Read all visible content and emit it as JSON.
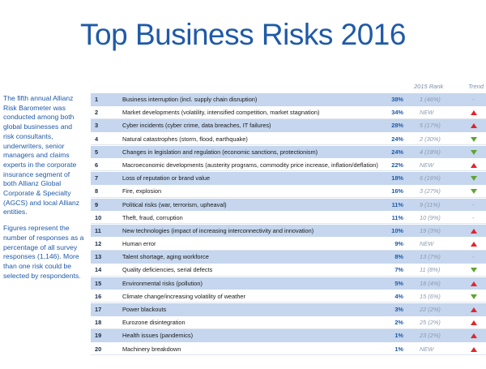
{
  "title": "Top Business Risks 2016",
  "intro": {
    "p1": "The fifth annual Allianz Risk Barometer was conducted among both global businesses and risk consultants, underwriters, senior managers and claims experts in the corporate insurance segment of both Allianz Global Corporate & Specialty (AGCS) and local Allianz entities.",
    "p2": "Figures represent the number of responses as a percentage of all survey responses (1,146). More than one risk could be selected by respondents."
  },
  "headers": {
    "rank_2015": "2015 Rank",
    "trend": "Trend"
  },
  "colors": {
    "title": "#1f5aa8",
    "shaded_row": "#c5d6ee",
    "up": "#e3242b",
    "down": "#5fa330"
  },
  "rows": [
    {
      "rank": "1",
      "risk": "Business interruption (incl. supply chain disruption)",
      "pct": "38%",
      "prev": "1 (46%)",
      "trend": "same"
    },
    {
      "rank": "2",
      "risk": "Market developments (volatility, intensified competition, market stagnation)",
      "pct": "34%",
      "prev": "NEW",
      "trend": "up"
    },
    {
      "rank": "3",
      "risk": "Cyber incidents (cyber crime, data breaches, IT failures)",
      "pct": "28%",
      "prev": "5 (17%)",
      "trend": "up"
    },
    {
      "rank": "4",
      "risk": "Natural catastrophes (storm, flood, earthquake)",
      "pct": "24%",
      "prev": "2 (30%)",
      "trend": "down"
    },
    {
      "rank": "5",
      "risk": "Changes in legislation and regulation (economic sanctions, protectionism)",
      "pct": "24%",
      "prev": "4 (18%)",
      "trend": "down"
    },
    {
      "rank": "6",
      "risk": "Macroeconomic developments (austerity programs, commodity price increase, inflation/deflation)",
      "pct": "22%",
      "prev": "NEW",
      "trend": "up"
    },
    {
      "rank": "7",
      "risk": "Loss of reputation or brand value",
      "pct": "18%",
      "prev": "6 (16%)",
      "trend": "down"
    },
    {
      "rank": "8",
      "risk": "Fire, explosion",
      "pct": "16%",
      "prev": "3 (27%)",
      "trend": "down"
    },
    {
      "rank": "9",
      "risk": "Political risks (war, terrorism, upheaval)",
      "pct": "11%",
      "prev": "9 (11%)",
      "trend": "same"
    },
    {
      "rank": "10",
      "risk": "Theft, fraud, corruption",
      "pct": "11%",
      "prev": "10 (9%)",
      "trend": "same"
    },
    {
      "rank": "11",
      "risk": "New technologies (impact of increasing interconnectivity and innovation)",
      "pct": "10%",
      "prev": "19 (3%)",
      "trend": "up"
    },
    {
      "rank": "12",
      "risk": "Human error",
      "pct": "9%",
      "prev": "NEW",
      "trend": "up"
    },
    {
      "rank": "13",
      "risk": "Talent shortage, aging workforce",
      "pct": "8%",
      "prev": "13 (7%)",
      "trend": "same"
    },
    {
      "rank": "14",
      "risk": "Quality deficiencies, serial defects",
      "pct": "7%",
      "prev": "11 (8%)",
      "trend": "down"
    },
    {
      "rank": "15",
      "risk": "Environmental risks (pollution)",
      "pct": "5%",
      "prev": "18 (4%)",
      "trend": "up"
    },
    {
      "rank": "16",
      "risk": "Climate change/increasing volatility of weather",
      "pct": "4%",
      "prev": "15 (6%)",
      "trend": "down"
    },
    {
      "rank": "17",
      "risk": "Power blackouts",
      "pct": "3%",
      "prev": "22 (2%)",
      "trend": "up"
    },
    {
      "rank": "18",
      "risk": "Eurozone disintegration",
      "pct": "2%",
      "prev": "25 (2%)",
      "trend": "up"
    },
    {
      "rank": "19",
      "risk": "Health issues (pandemics)",
      "pct": "1%",
      "prev": "23 (2%)",
      "trend": "up"
    },
    {
      "rank": "20",
      "risk": "Machinery breakdown",
      "pct": "1%",
      "prev": "NEW",
      "trend": "up"
    }
  ]
}
